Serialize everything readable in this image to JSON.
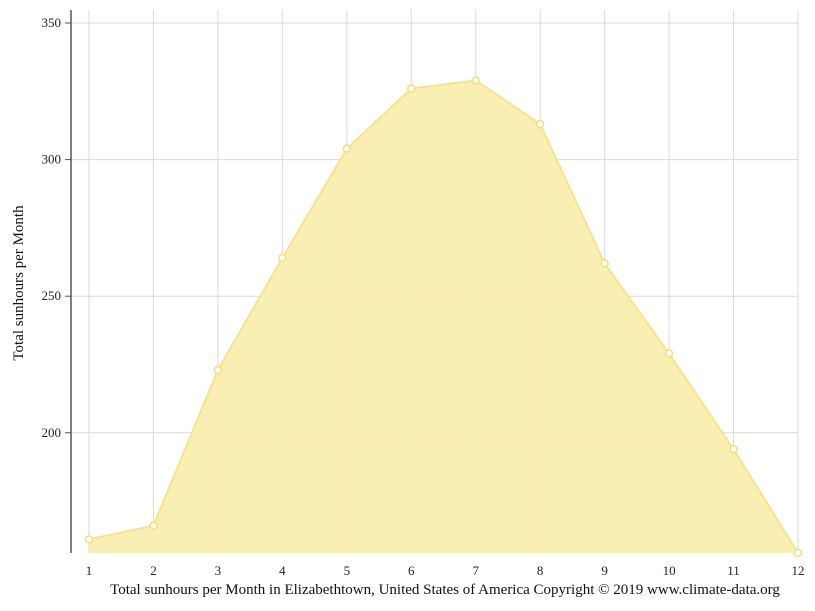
{
  "chart_data": {
    "type": "area",
    "x": [
      1,
      2,
      3,
      4,
      5,
      6,
      7,
      8,
      9,
      10,
      11,
      12
    ],
    "values": [
      161,
      166,
      223,
      264,
      304,
      326,
      329,
      313,
      262,
      229,
      194,
      156
    ],
    "ylabel": "Total sunhours per Month",
    "xlabel": "",
    "yticks": [
      200,
      250,
      300,
      350
    ],
    "xlim": [
      1,
      12
    ],
    "ylim": [
      156,
      350
    ],
    "grid": true,
    "legend": "none",
    "fill_color": "#faeeaf",
    "line_color": "#f8e38c",
    "marker_color": "#f4df7a"
  },
  "caption": "Total sunhours per Month in Elizabethtown, United States of America Copyright © 2019 www.climate-data.org"
}
